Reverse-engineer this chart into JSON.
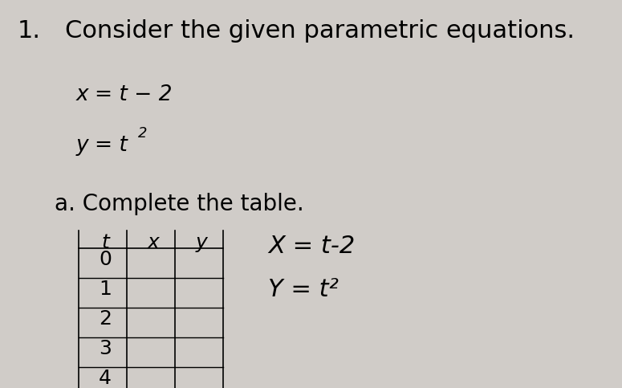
{
  "background_color": "#d0ccc8",
  "number_label": "1.",
  "title_text": "Consider the given parametric equations.",
  "eq1_main": "x = t − 2",
  "eq2_base": "y = t",
  "eq2_exp": "2",
  "subtitle": "a. Complete the table.",
  "table_headers": [
    "t",
    "x",
    "y"
  ],
  "table_rows": [
    "0",
    "1",
    "2",
    "3",
    "4"
  ],
  "annotation1": "X = t-2",
  "annotation2": "Y = t²",
  "title_fontsize": 22,
  "eq_fontsize": 19,
  "subtitle_fontsize": 20,
  "table_fontsize": 18,
  "annot_fontsize": 22,
  "number_fontsize": 22
}
